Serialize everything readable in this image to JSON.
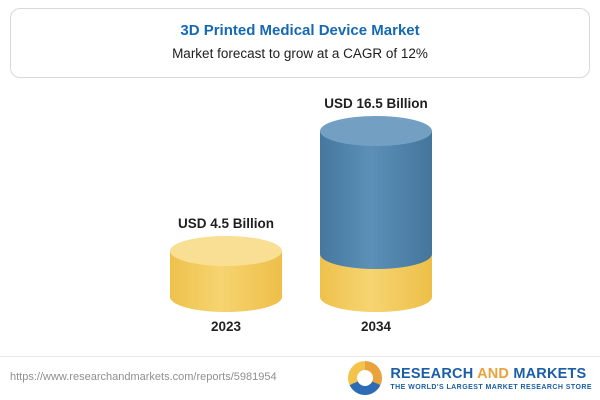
{
  "header": {
    "title": "3D Printed Medical Device Market",
    "subtitle": "Market forecast to grow at a CAGR of 12%"
  },
  "chart_data": {
    "type": "bar",
    "title": "3D Printed Medical Device Market",
    "subtitle": "Market forecast to grow at a CAGR of 12%",
    "categories": [
      "2023",
      "2034"
    ],
    "values": [
      4.5,
      16.5
    ],
    "unit": "USD Billion",
    "value_labels": [
      "USD 4.5 Billion",
      "USD 16.5 Billion"
    ],
    "cagr_percent": 12,
    "ylim": [
      0,
      18
    ],
    "legend": "none",
    "grid": false,
    "colors": {
      "bar_2023": "#F3CA57",
      "bar_2023_top": "#F8DF93",
      "bar_2034": "#4C82AC",
      "bar_2034_top": "#73A0C2",
      "bar_2034_base": "#F3CA57"
    }
  },
  "footer": {
    "url": "https://www.researchandmarkets.com/reports/5981954",
    "logo": {
      "word1": "RESEARCH",
      "word2": "AND",
      "word3": "MARKETS",
      "tagline": "THE WORLD'S LARGEST MARKET RESEARCH STORE"
    }
  }
}
